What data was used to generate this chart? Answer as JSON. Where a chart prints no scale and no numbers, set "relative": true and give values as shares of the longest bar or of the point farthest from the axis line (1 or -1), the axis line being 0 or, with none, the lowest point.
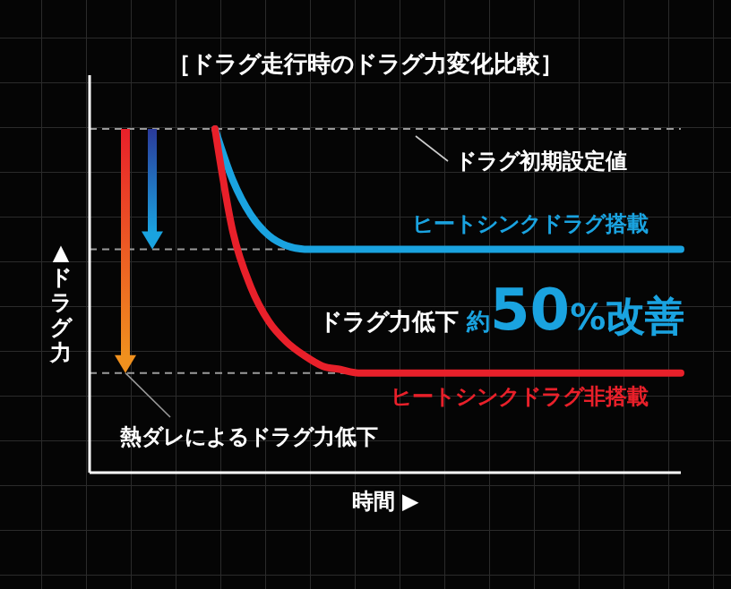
{
  "chart_data": {
    "type": "line",
    "title": "［ドラグ走行時のドラグ力変化比較］",
    "xlabel": "時間 ▶",
    "ylabel": "▲ドラグ力",
    "relative": true,
    "legend": false,
    "categories": [
      null,
      null,
      null,
      null,
      null,
      null,
      null,
      null,
      null,
      null,
      null,
      null,
      null,
      null,
      null,
      null,
      null,
      null,
      null,
      null,
      null,
      null,
      null,
      null,
      null,
      null,
      null,
      null,
      null,
      null,
      null,
      null,
      null,
      null
    ],
    "series": [
      {
        "name": "ヒートシンクドラグ搭載",
        "color": "#1aa3e0",
        "values": [
          null,
          null,
          null,
          null,
          null,
          null,
          null,
          1,
          0.85,
          0.75,
          0.69,
          0.66,
          0.65,
          0.65,
          0.65,
          0.65,
          0.65,
          0.65,
          0.65,
          0.65,
          0.65,
          0.65,
          0.65,
          0.65,
          0.65,
          0.65,
          0.65,
          0.65,
          0.65,
          0.65,
          0.65,
          0.65,
          0.65,
          0.65
        ]
      },
      {
        "name": "ヒートシンクドラグ非搭載",
        "color": "#e8202a",
        "values": [
          null,
          null,
          null,
          null,
          null,
          null,
          null,
          1,
          0.7,
          0.54,
          0.44,
          0.38,
          0.34,
          0.31,
          0.3,
          0.29,
          0.29,
          0.29,
          0.29,
          0.29,
          0.29,
          0.29,
          0.29,
          0.29,
          0.29,
          0.29,
          0.29,
          0.29,
          0.29,
          0.29,
          0.29,
          0.29,
          0.29,
          0.29
        ]
      }
    ],
    "ref_lines": [
      {
        "axis": "y",
        "value": 1,
        "label": "ドラグ初期設定値",
        "color": "#9a9a9a",
        "line_style": "dashed"
      },
      {
        "axis": "y",
        "value": 0.65,
        "color": "#9a9a9a",
        "line_style": "dashed"
      },
      {
        "axis": "y",
        "value": 0.29,
        "color": "#9a9a9a",
        "line_style": "dashed"
      }
    ],
    "annotations": [
      "熱ダレによるドラグ力低下",
      "ドラグ力低下 約50%改善"
    ]
  }
}
